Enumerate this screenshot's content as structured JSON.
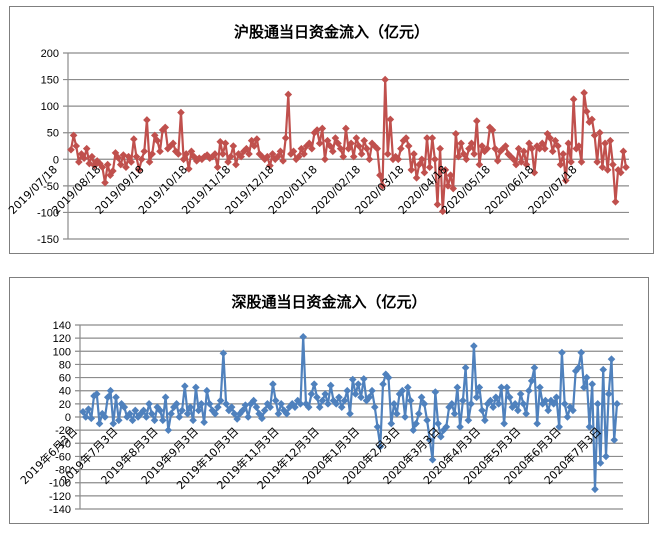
{
  "chart_data": [
    {
      "type": "line",
      "title": "沪股通当日资金流入（亿元）",
      "xlabel": "",
      "ylabel": "",
      "ylim": [
        -150,
        200
      ],
      "yticks": [
        200,
        150,
        100,
        50,
        0,
        -50,
        -100,
        -150
      ],
      "grid": true,
      "legend": "none",
      "marker": "diamond",
      "color": "#c0504d",
      "x_tick_labels": [
        "2019/07/18",
        "2019/08/18",
        "2019/09/18",
        "2019/10/18",
        "2019/11/18",
        "2019/12/18",
        "2020/01/18",
        "2020/02/18",
        "2020/03/18",
        "2020/04/18",
        "2020/05/18",
        "2020/06/18",
        "2020/07/18"
      ],
      "series": [
        {
          "name": "沪股通当日资金流入",
          "values": [
            18,
            45,
            25,
            -5,
            10,
            2,
            20,
            -8,
            5,
            -12,
            -3,
            -8,
            -15,
            -44,
            -10,
            -30,
            -22,
            12,
            3,
            -10,
            8,
            -15,
            5,
            -5,
            38,
            5,
            -20,
            0,
            15,
            74,
            -5,
            10,
            45,
            35,
            15,
            55,
            60,
            20,
            25,
            30,
            15,
            10,
            88,
            0,
            10,
            -18,
            15,
            5,
            -3,
            2,
            0,
            5,
            8,
            2,
            5,
            10,
            -15,
            33,
            10,
            30,
            -5,
            5,
            25,
            -10,
            10,
            5,
            15,
            20,
            10,
            35,
            25,
            38,
            10,
            5,
            0,
            5,
            -12,
            10,
            0,
            5,
            15,
            -3,
            40,
            122,
            10,
            15,
            0,
            5,
            20,
            10,
            25,
            30,
            20,
            50,
            55,
            30,
            58,
            0,
            35,
            25,
            15,
            40,
            30,
            20,
            5,
            58,
            20,
            30,
            5,
            40,
            25,
            10,
            35,
            20,
            0,
            30,
            25,
            20,
            -30,
            -50,
            150,
            10,
            75,
            0,
            5,
            0,
            20,
            35,
            40,
            25,
            -20,
            10,
            -35,
            -10,
            0,
            -25,
            40,
            -15,
            40,
            0,
            -85,
            20,
            -98,
            -20,
            -50,
            -30,
            -55,
            48,
            5,
            30,
            10,
            0,
            20,
            30,
            10,
            72,
            -10,
            25,
            15,
            20,
            60,
            55,
            20,
            -3,
            15,
            20,
            25,
            10,
            5,
            0,
            -10,
            20,
            -5,
            15,
            -10,
            30,
            20,
            -25,
            25,
            20,
            30,
            20,
            48,
            40,
            15,
            35,
            25,
            -10,
            10,
            -40,
            30,
            -5,
            113,
            20,
            25,
            -5,
            125,
            90,
            70,
            75,
            45,
            -5,
            50,
            -15,
            30,
            -20,
            35,
            -10,
            -80,
            -20,
            -25,
            15,
            -15
          ]
        }
      ]
    },
    {
      "type": "line",
      "title": "深股通当日资金流入（亿元）",
      "xlabel": "",
      "ylabel": "",
      "ylim": [
        -140,
        140
      ],
      "yticks": [
        140,
        120,
        100,
        80,
        60,
        40,
        20,
        0,
        -20,
        -40,
        -60,
        -80,
        -100,
        -120,
        -140
      ],
      "grid": true,
      "legend": "none",
      "marker": "diamond",
      "color": "#4f81bd",
      "x_tick_labels": [
        "2019年6月3日",
        "2019年7月3日",
        "2019年8月3日",
        "2019年9月3日",
        "2019年10月3日",
        "2019年11月3日",
        "2019年12月3日",
        "2020年1月3日",
        "2020年2月3日",
        "2020年3月3日",
        "2020年4月3日",
        "2020年5月3日",
        "2020年6月3日",
        "2020年7月3日"
      ],
      "series": [
        {
          "name": "深股通当日资金流入",
          "values": [
            8,
            0,
            12,
            -2,
            32,
            35,
            -10,
            5,
            0,
            30,
            40,
            -10,
            30,
            -5,
            20,
            15,
            0,
            5,
            -5,
            10,
            0,
            5,
            10,
            0,
            20,
            5,
            -5,
            15,
            10,
            -5,
            30,
            -20,
            5,
            15,
            20,
            0,
            10,
            47,
            5,
            15,
            -5,
            45,
            10,
            20,
            -8,
            40,
            20,
            10,
            5,
            15,
            25,
            97,
            20,
            10,
            15,
            5,
            -3,
            5,
            10,
            18,
            0,
            20,
            25,
            15,
            5,
            -2,
            10,
            20,
            15,
            50,
            25,
            5,
            20,
            10,
            5,
            15,
            20,
            15,
            25,
            20,
            122,
            20,
            15,
            35,
            50,
            30,
            15,
            25,
            35,
            20,
            48,
            25,
            20,
            30,
            15,
            25,
            40,
            5,
            57,
            35,
            50,
            30,
            58,
            25,
            30,
            40,
            15,
            -15,
            -45,
            50,
            65,
            60,
            -10,
            20,
            5,
            35,
            40,
            0,
            45,
            25,
            -20,
            -10,
            5,
            30,
            20,
            -5,
            -35,
            -65,
            38,
            -10,
            -30,
            -20,
            -15,
            15,
            20,
            5,
            45,
            -15,
            25,
            75,
            -5,
            20,
            108,
            30,
            45,
            10,
            -5,
            20,
            25,
            15,
            30,
            20,
            45,
            -10,
            45,
            30,
            15,
            20,
            10,
            35,
            20,
            5,
            40,
            55,
            75,
            -10,
            45,
            20,
            25,
            10,
            25,
            20,
            30,
            -15,
            98,
            20,
            0,
            15,
            10,
            70,
            75,
            98,
            45,
            60,
            -15,
            50,
            -110,
            20,
            -70,
            72,
            -60,
            35,
            88,
            -35,
            20
          ]
        }
      ]
    }
  ]
}
